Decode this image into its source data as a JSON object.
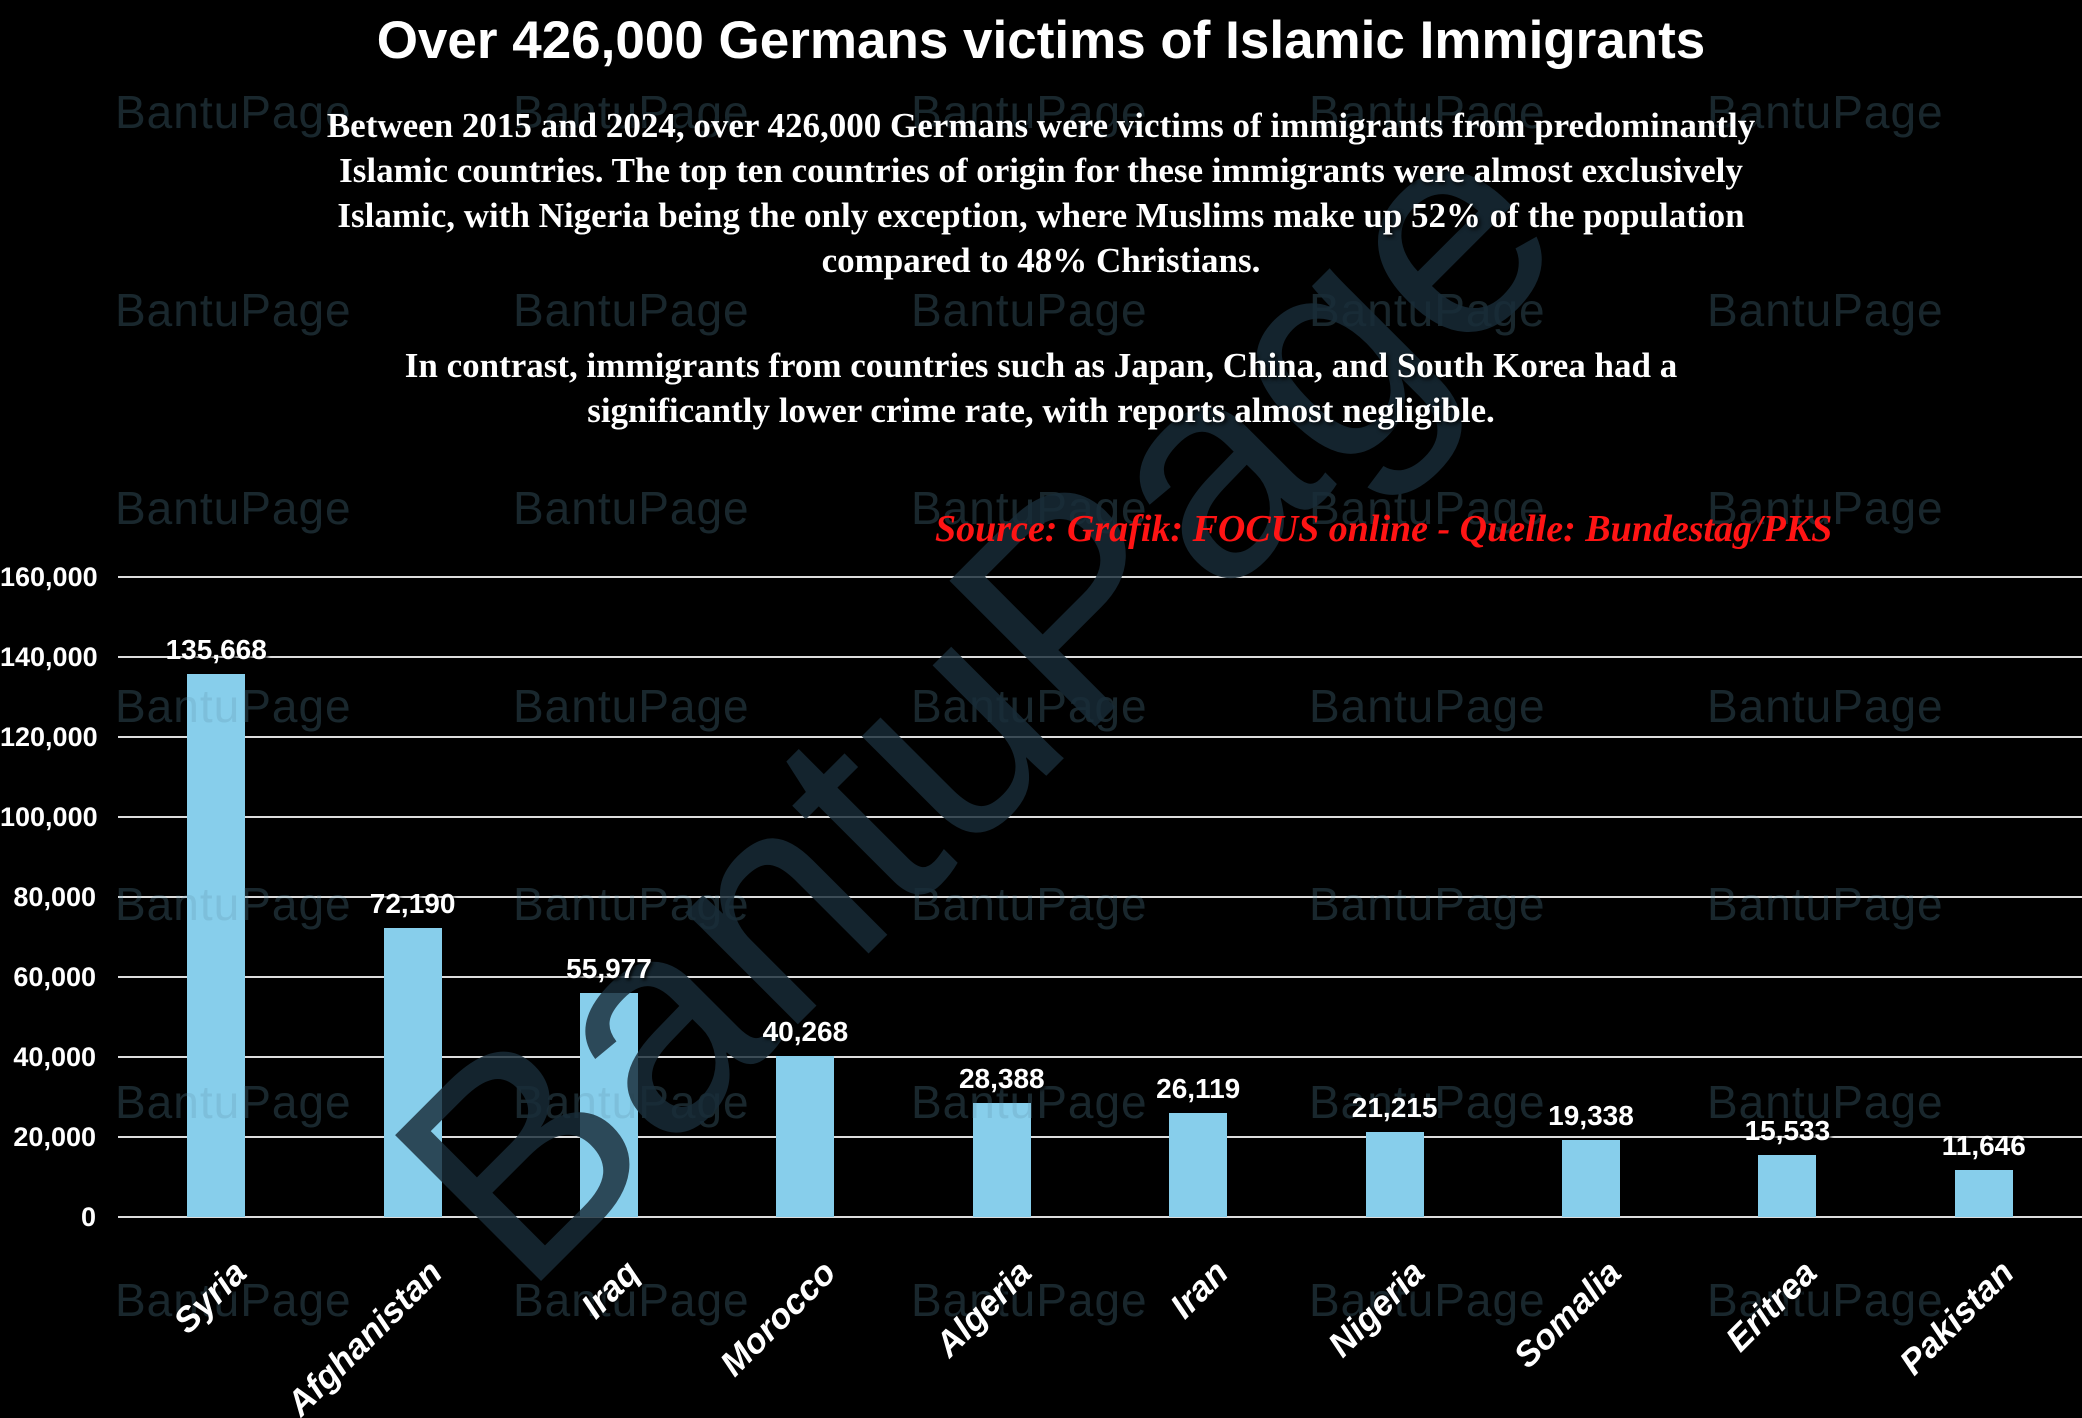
{
  "header": {
    "title": "Over 426,000 Germans victims of Islamic Immigrants"
  },
  "intro": {
    "paragraph1_lines": [
      "Between 2015 and 2024, over 426,000 Germans were victims of immigrants from predominantly",
      "Islamic countries. The top ten countries of origin for these immigrants were almost exclusively",
      "Islamic, with Nigeria being the only exception, where Muslims make up 52% of the population",
      "compared to 48% Christians."
    ],
    "paragraph2_lines": [
      "In contrast, immigrants from countries such as Japan, China, and South Korea had a",
      "significantly lower crime rate, with reports almost negligible."
    ]
  },
  "source": {
    "text": "Source: Grafik: FOCUS online - Quelle: Bundestag/PKS",
    "color": "#ff1414"
  },
  "watermark": {
    "text": "BantuPage"
  },
  "chart_data": {
    "type": "bar",
    "title": "",
    "xlabel": "",
    "ylabel": "",
    "categories": [
      "Syria",
      "Afghanistan",
      "Iraq",
      "Morocco",
      "Algeria",
      "Iran",
      "Nigeria",
      "Somalia",
      "Eritrea",
      "Pakistan"
    ],
    "values": [
      135668,
      72190,
      55977,
      40268,
      28388,
      26119,
      21215,
      19338,
      15533,
      11646
    ],
    "value_labels": [
      "135,668",
      "72,190",
      "55,977",
      "40,268",
      "28,388",
      "26,119",
      "21,215",
      "19,338",
      "15,533",
      "11,646"
    ],
    "ylim": [
      0,
      160000
    ],
    "ytick_step": 20000,
    "yticks_top_to_bottom": [
      "160,000",
      "140,000",
      "120,000",
      "100,000",
      "80,000",
      "60,000",
      "40,000",
      "20,000",
      "0"
    ],
    "grid": true,
    "legend": null,
    "bar_color": "#87CEEB",
    "background_color": "#000000",
    "gridline_color": "#dcdcdc",
    "label_color": "#ffffff"
  }
}
